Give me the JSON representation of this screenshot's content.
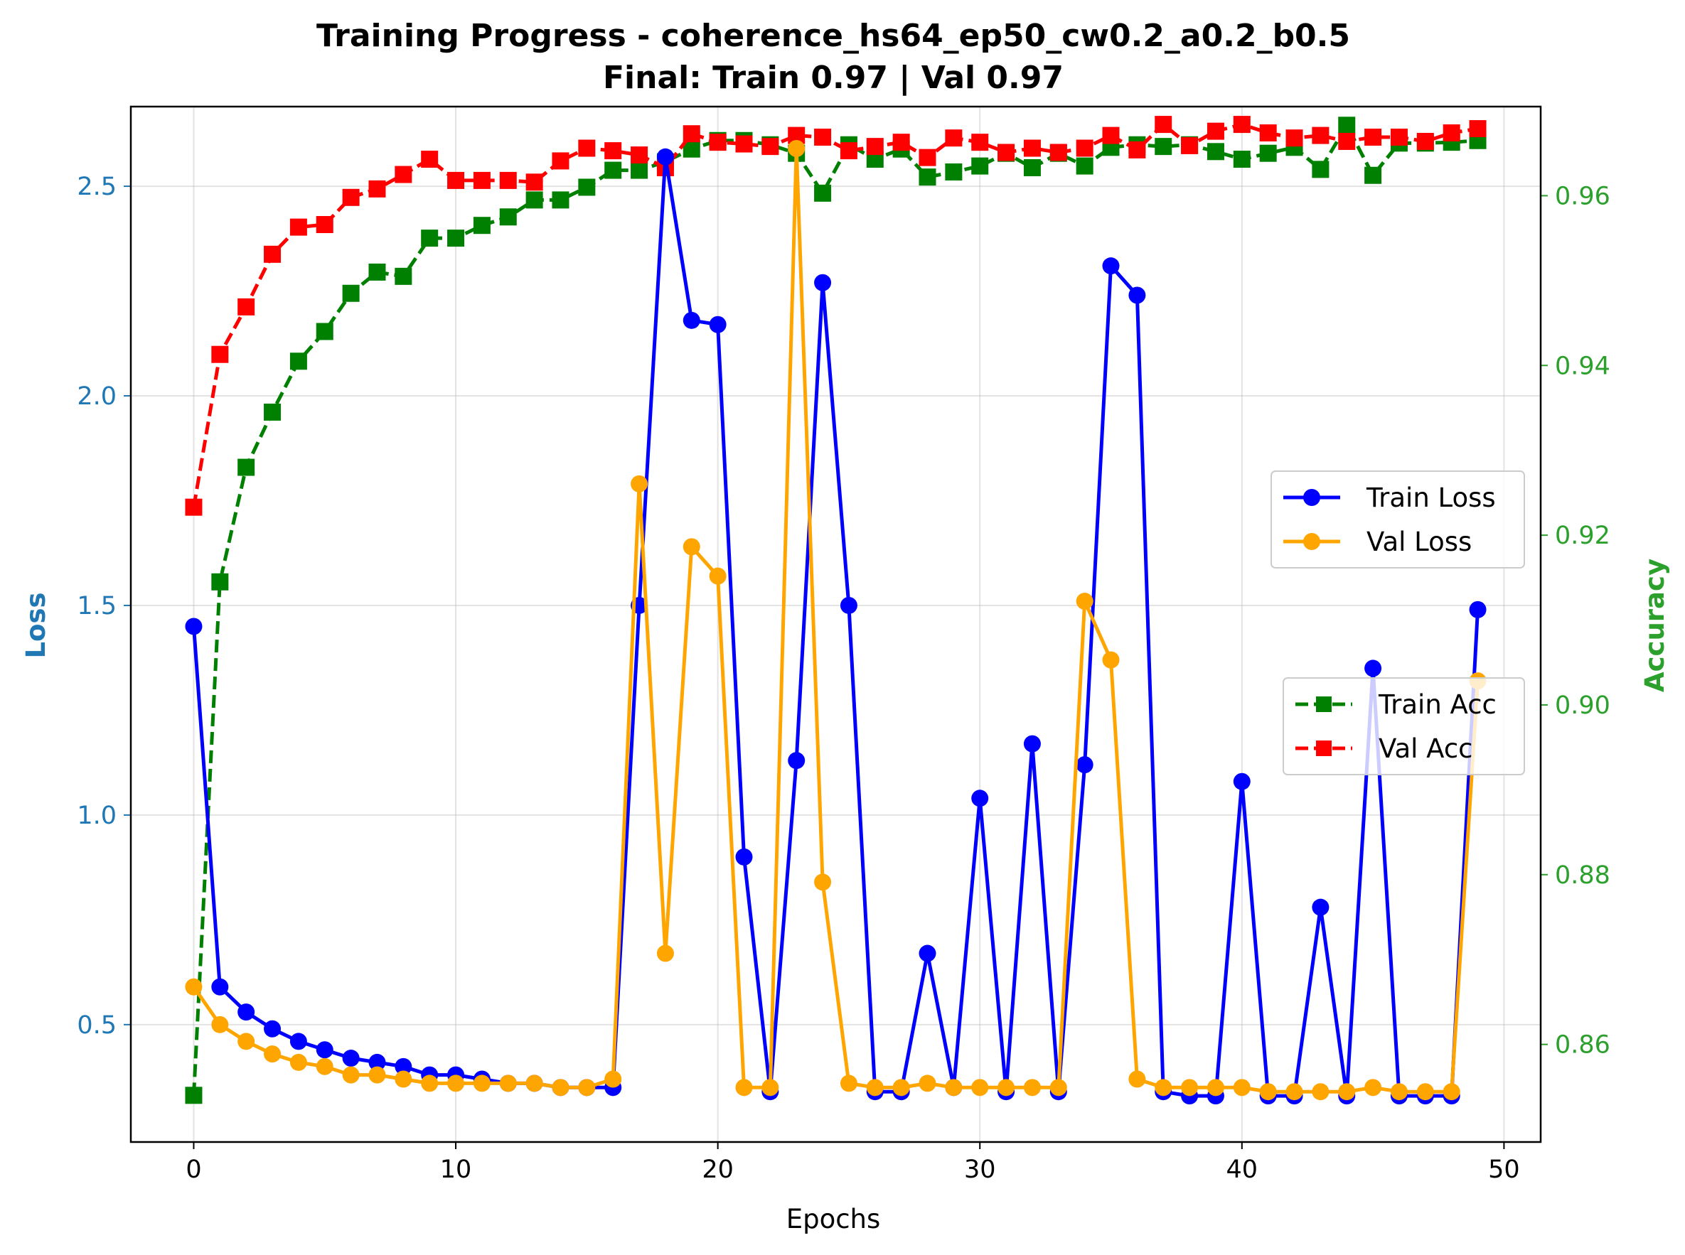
{
  "chart_data": {
    "type": "line",
    "title": "Training Progress - coherence_hs64_ep50_cw0.2_a0.2_b0.5",
    "subtitle": "Final: Train 0.97 | Val 0.97",
    "xlabel": "Epochs",
    "ylabel_left": "Loss",
    "ylabel_right": "Accuracy",
    "xlim": [
      -2.4,
      51.4
    ],
    "ylim_left": [
      0.22,
      2.69
    ],
    "ylim_right": [
      0.8485,
      0.9705
    ],
    "x_ticks": [
      0,
      10,
      20,
      30,
      40,
      50
    ],
    "y_ticks_left": [
      0.5,
      1.0,
      1.5,
      2.0,
      2.5
    ],
    "y_ticks_left_labels": [
      "0.5",
      "1.0",
      "1.5",
      "2.0",
      "2.5"
    ],
    "y_ticks_right": [
      0.86,
      0.88,
      0.9,
      0.92,
      0.94,
      0.96
    ],
    "y_ticks_right_labels": [
      "0.86",
      "0.88",
      "0.90",
      "0.92",
      "0.94",
      "0.96"
    ],
    "grid": true,
    "x": [
      0,
      1,
      2,
      3,
      4,
      5,
      6,
      7,
      8,
      9,
      10,
      11,
      12,
      13,
      14,
      15,
      16,
      17,
      18,
      19,
      20,
      21,
      22,
      23,
      24,
      25,
      26,
      27,
      28,
      29,
      30,
      31,
      32,
      33,
      34,
      35,
      36,
      37,
      38,
      39,
      40,
      41,
      42,
      43,
      44,
      45,
      46,
      47,
      48,
      49
    ],
    "loss_series": [
      {
        "name": "Train Loss",
        "color": "#0000ff",
        "marker": "circle",
        "style": "solid",
        "values": [
          1.45,
          0.59,
          0.53,
          0.49,
          0.46,
          0.44,
          0.42,
          0.41,
          0.4,
          0.38,
          0.38,
          0.37,
          0.36,
          0.36,
          0.35,
          0.35,
          0.35,
          1.5,
          2.57,
          2.18,
          2.17,
          0.9,
          0.34,
          1.13,
          2.27,
          1.5,
          0.34,
          0.34,
          0.67,
          0.35,
          1.04,
          0.34,
          1.17,
          0.34,
          1.12,
          2.31,
          2.24,
          0.34,
          0.33,
          0.33,
          1.08,
          0.33,
          0.33,
          0.78,
          0.33,
          1.35,
          0.33,
          0.33,
          0.33,
          1.49
        ]
      },
      {
        "name": "Val Loss",
        "color": "#ffa500",
        "marker": "circle",
        "style": "solid",
        "values": [
          0.59,
          0.5,
          0.46,
          0.43,
          0.41,
          0.4,
          0.38,
          0.38,
          0.37,
          0.36,
          0.36,
          0.36,
          0.36,
          0.36,
          0.35,
          0.35,
          0.37,
          1.79,
          0.67,
          1.64,
          1.57,
          0.35,
          0.35,
          2.59,
          0.84,
          0.36,
          0.35,
          0.35,
          0.36,
          0.35,
          0.35,
          0.35,
          0.35,
          0.35,
          1.51,
          1.37,
          0.37,
          0.35,
          0.35,
          0.35,
          0.35,
          0.34,
          0.34,
          0.34,
          0.34,
          0.35,
          0.34,
          0.34,
          0.34,
          1.32
        ]
      }
    ],
    "acc_series": [
      {
        "name": "Train Acc",
        "color": "#008000",
        "marker": "square",
        "style": "dashed",
        "values": [
          0.854,
          0.9145,
          0.928,
          0.9345,
          0.9405,
          0.944,
          0.9485,
          0.951,
          0.9505,
          0.955,
          0.955,
          0.9565,
          0.9575,
          0.9595,
          0.9595,
          0.961,
          0.963,
          0.963,
          0.964,
          0.9655,
          0.9665,
          0.9665,
          0.966,
          0.965,
          0.9603,
          0.966,
          0.9643,
          0.9655,
          0.9622,
          0.9628,
          0.9635,
          0.965,
          0.9633,
          0.965,
          0.9635,
          0.9657,
          0.966,
          0.9658,
          0.966,
          0.9652,
          0.9643,
          0.965,
          0.9657,
          0.9631,
          0.9683,
          0.9624,
          0.9662,
          0.9662,
          0.9663,
          0.9665
        ]
      },
      {
        "name": "Val Acc",
        "color": "#ff0000",
        "marker": "square",
        "style": "dashed",
        "values": [
          0.9233,
          0.9413,
          0.9469,
          0.9531,
          0.9563,
          0.9566,
          0.9598,
          0.9608,
          0.9625,
          0.9643,
          0.9618,
          0.9618,
          0.9618,
          0.9616,
          0.9641,
          0.9656,
          0.9653,
          0.9648,
          0.9633,
          0.9673,
          0.9663,
          0.9661,
          0.9658,
          0.9671,
          0.9669,
          0.9653,
          0.9658,
          0.9663,
          0.9645,
          0.9668,
          0.9663,
          0.9651,
          0.9656,
          0.9651,
          0.9656,
          0.9671,
          0.9654,
          0.9684,
          0.9659,
          0.9676,
          0.9684,
          0.9674,
          0.9668,
          0.9671,
          0.9664,
          0.9669,
          0.9669,
          0.9664,
          0.9674,
          0.9679
        ]
      }
    ],
    "legend_loss_placement": "center-right",
    "legend_acc_placement": "right"
  }
}
